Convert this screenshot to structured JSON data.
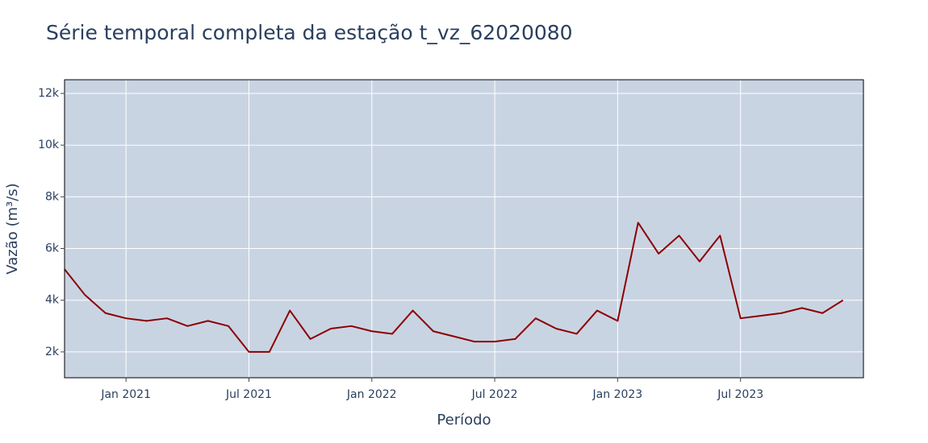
{
  "chart_data": {
    "type": "line",
    "title": "Série temporal completa da estação t_vz_62020080",
    "x_label": "Período",
    "y_label": "Vazão (m³/s)",
    "x": [
      "2020-10",
      "2020-11",
      "2020-12",
      "2021-01",
      "2021-02",
      "2021-03",
      "2021-04",
      "2021-05",
      "2021-06",
      "2021-07",
      "2021-08",
      "2021-09",
      "2021-10",
      "2021-11",
      "2021-12",
      "2022-01",
      "2022-02",
      "2022-03",
      "2022-04",
      "2022-05",
      "2022-06",
      "2022-07",
      "2022-08",
      "2022-09",
      "2022-10",
      "2022-11",
      "2022-12",
      "2023-01",
      "2023-02",
      "2023-03",
      "2023-04",
      "2023-05",
      "2023-06",
      "2023-07",
      "2023-08",
      "2023-09",
      "2023-10",
      "2023-11",
      "2023-12"
    ],
    "series": [
      {
        "name": "t_vz_62020080",
        "color": "#8b0000",
        "values": [
          5200,
          4200,
          3500,
          3300,
          3200,
          3300,
          3000,
          3200,
          3000,
          2000,
          2000,
          3600,
          2500,
          2900,
          3000,
          2800,
          2700,
          3600,
          2800,
          2600,
          2400,
          2400,
          2500,
          3300,
          2900,
          2700,
          3600,
          3200,
          7000,
          5800,
          6500,
          5500,
          6500,
          3300,
          3400,
          3500,
          3700,
          3500,
          4000
        ]
      }
    ],
    "xlim": [
      "2020-10",
      "2024-01"
    ],
    "xticks": [
      {
        "value": "2021-01",
        "label": "Jan 2021"
      },
      {
        "value": "2021-07",
        "label": "Jul 2021"
      },
      {
        "value": "2022-01",
        "label": "Jan 2022"
      },
      {
        "value": "2022-07",
        "label": "Jul 2022"
      },
      {
        "value": "2023-01",
        "label": "Jan 2023"
      },
      {
        "value": "2023-07",
        "label": "Jul 2023"
      }
    ],
    "ylim": [
      1000,
      12530
    ],
    "yticks": [
      {
        "value": 2000,
        "label": "2k"
      },
      {
        "value": 4000,
        "label": "4k"
      },
      {
        "value": 6000,
        "label": "6k"
      },
      {
        "value": 8000,
        "label": "8k"
      },
      {
        "value": 10000,
        "label": "10k"
      },
      {
        "value": 12000,
        "label": "12k"
      }
    ],
    "grid": true,
    "plot_background": "#c9d4e3"
  }
}
